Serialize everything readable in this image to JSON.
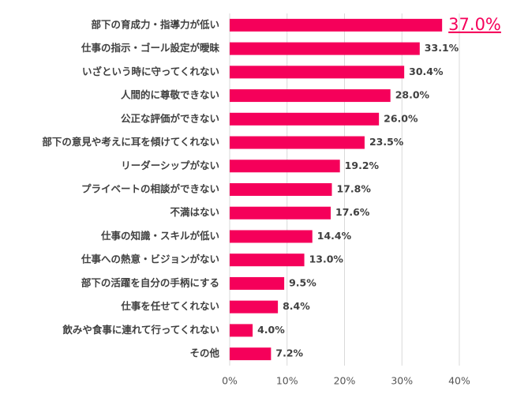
{
  "chart_data": {
    "type": "bar",
    "orientation": "horizontal",
    "categories": [
      "部下の育成力・指導力が低い",
      "仕事の指示・ゴール設定が曖昧",
      "いざという時に守ってくれない",
      "人間的に尊敬できない",
      "公正な評価ができない",
      "部下の意見や考えに耳を傾けてくれない",
      "リーダーシップがない",
      "プライベートの相談ができない",
      "不満はない",
      "仕事の知識・スキルが低い",
      "仕事への熱意・ビジョンがない",
      "部下の活躍を自分の手柄にする",
      "仕事を任せてくれない",
      "飲みや食事に連れて行ってくれない",
      "その他"
    ],
    "values": [
      37.0,
      33.1,
      30.4,
      28.0,
      26.0,
      23.5,
      19.2,
      17.8,
      17.6,
      14.4,
      13.0,
      9.5,
      8.4,
      4.0,
      7.2
    ],
    "value_labels": [
      "37.0%",
      "33.1%",
      "30.4%",
      "28.0%",
      "26.0%",
      "23.5%",
      "19.2%",
      "17.8%",
      "17.6%",
      "14.4%",
      "13.0%",
      "9.5%",
      "8.4%",
      "4.0%",
      "7.2%"
    ],
    "color": "#f5005a",
    "highlight_index": 0,
    "xlim": [
      0,
      40
    ],
    "xticks": [
      {
        "value": 0,
        "label": "0%"
      },
      {
        "value": 10,
        "label": "10%"
      },
      {
        "value": 20,
        "label": "20%"
      },
      {
        "value": 30,
        "label": "30%"
      },
      {
        "value": 40,
        "label": "40%"
      }
    ],
    "grid": true
  }
}
